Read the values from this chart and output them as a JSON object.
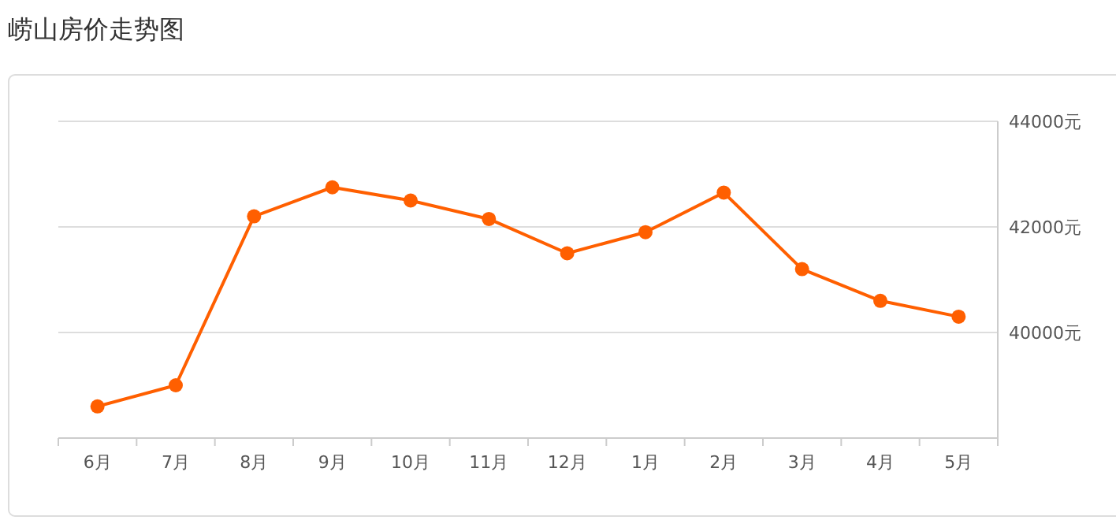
{
  "chart_data": {
    "type": "line",
    "title": "崂山房价走势图",
    "categories": [
      "6月",
      "7月",
      "8月",
      "9月",
      "10月",
      "11月",
      "12月",
      "1月",
      "2月",
      "3月",
      "4月",
      "5月"
    ],
    "series": [
      {
        "color": "#ff5f00",
        "values": [
          38600,
          39000,
          42200,
          42750,
          42500,
          42150,
          41500,
          41900,
          42650,
          41200,
          40600,
          40300
        ]
      }
    ],
    "ylim": [
      38000,
      44000
    ],
    "yticks": [
      {
        "value": 40000,
        "label": "40000元"
      },
      {
        "value": 42000,
        "label": "42000元"
      },
      {
        "value": 44000,
        "label": "44000元"
      }
    ],
    "grid": "y",
    "marker": "circle",
    "line_style": "solid"
  }
}
